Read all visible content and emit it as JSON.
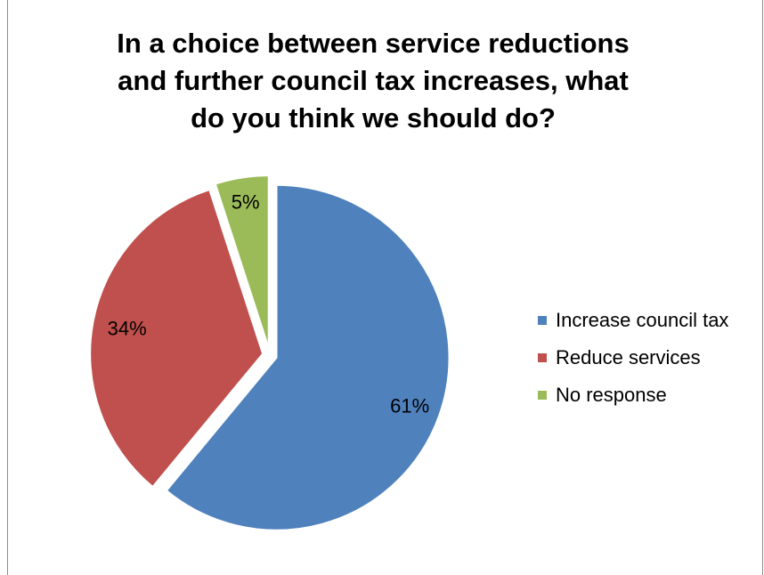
{
  "chart_data": {
    "type": "pie",
    "title_lines": [
      "In a choice between service reductions",
      "and further council tax increases, what",
      "do you think we should do?"
    ],
    "slices": [
      {
        "label": "Increase council tax",
        "value": 61,
        "data_label": "61%",
        "color": "#4f81bd"
      },
      {
        "label": "Reduce services",
        "value": 34,
        "data_label": "34%",
        "color": "#c0504d"
      },
      {
        "label": "No response",
        "value": 5,
        "data_label": "5%",
        "color": "#9bbb59"
      }
    ],
    "start": "12 o'clock",
    "direction": "clockwise",
    "exploded": true,
    "legend_position": "right"
  }
}
